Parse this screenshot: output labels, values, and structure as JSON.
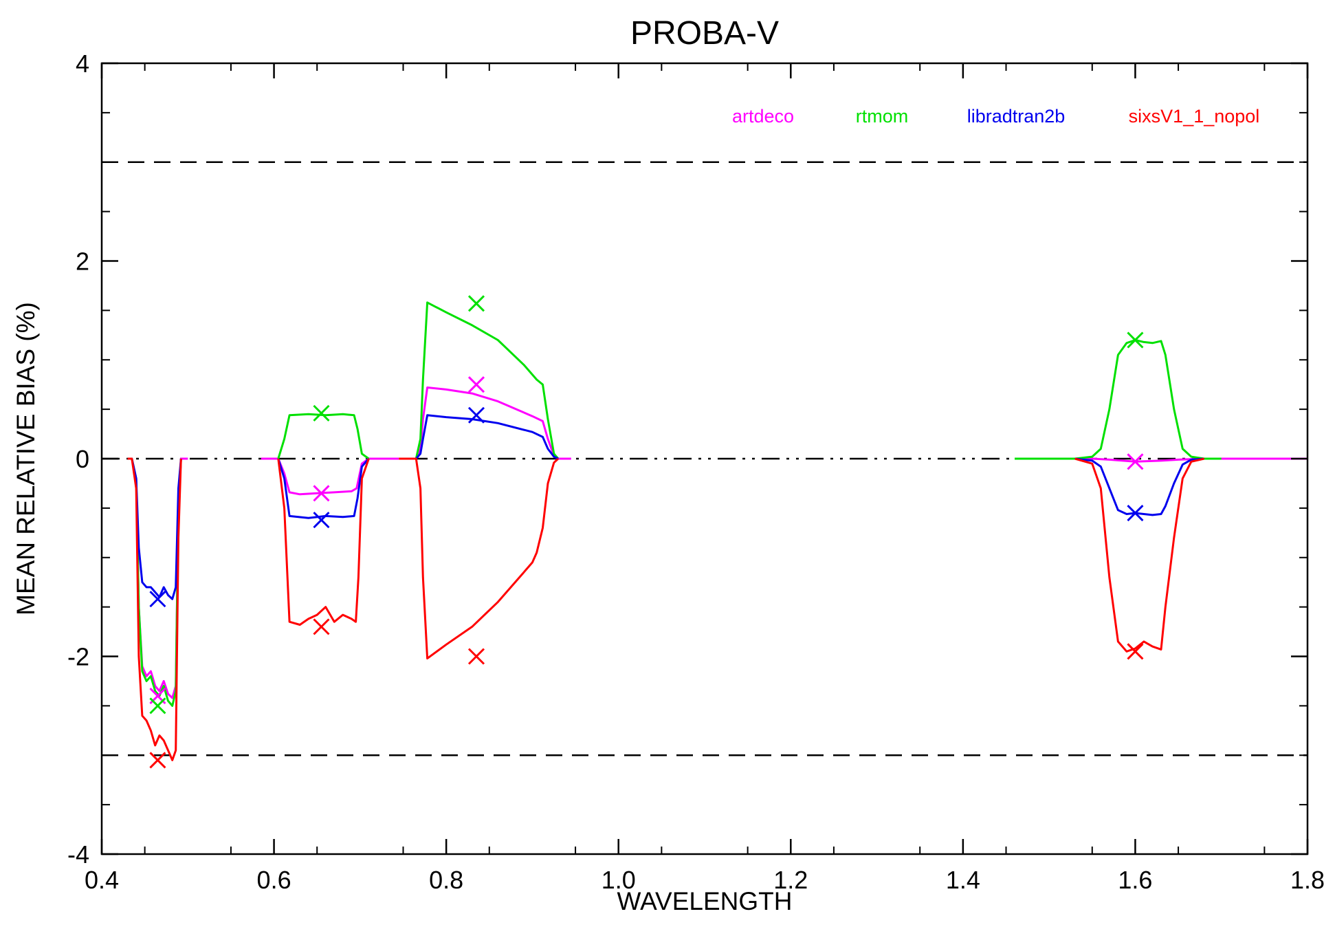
{
  "chart_data": {
    "type": "line",
    "title": "PROBA-V",
    "xlabel": "WAVELENGTH",
    "ylabel": "MEAN RELATIVE BIAS (%)",
    "xlim": [
      0.4,
      1.8
    ],
    "ylim": [
      -4,
      4
    ],
    "x_ticks": [
      0.4,
      0.6,
      0.8,
      1.0,
      1.2,
      1.4,
      1.6,
      1.8
    ],
    "x_tick_labels": [
      "0.4",
      "0.6",
      "0.8",
      "1.0",
      "1.2",
      "1.4",
      "1.6",
      "1.8"
    ],
    "y_ticks": [
      -4,
      -2,
      0,
      2,
      4
    ],
    "y_tick_labels": [
      "-4",
      "-2",
      "0",
      "2",
      "4"
    ],
    "reference_lines": [
      {
        "y": 3,
        "style": "dashed",
        "color": "#000000"
      },
      {
        "y": -3,
        "style": "dashed",
        "color": "#000000"
      },
      {
        "y": 0,
        "style": "dash-dot-dot",
        "color": "#000000"
      }
    ],
    "legend_position": "top-right",
    "series": [
      {
        "name": "artdeco",
        "color": "#ff00ff",
        "segments": [
          [
            [
              0.43,
              0
            ],
            [
              0.435,
              0
            ],
            [
              0.44,
              -0.2
            ],
            [
              0.443,
              -1.5
            ],
            [
              0.447,
              -2.1
            ],
            [
              0.452,
              -2.2
            ],
            [
              0.457,
              -2.15
            ],
            [
              0.462,
              -2.3
            ],
            [
              0.467,
              -2.35
            ],
            [
              0.472,
              -2.25
            ],
            [
              0.477,
              -2.38
            ],
            [
              0.482,
              -2.42
            ],
            [
              0.486,
              -2.3
            ],
            [
              0.489,
              -0.5
            ],
            [
              0.492,
              0
            ],
            [
              0.5,
              0
            ]
          ],
          [
            [
              0.585,
              0
            ],
            [
              0.605,
              0
            ],
            [
              0.612,
              -0.15
            ],
            [
              0.618,
              -0.34
            ],
            [
              0.63,
              -0.36
            ],
            [
              0.65,
              -0.35
            ],
            [
              0.67,
              -0.34
            ],
            [
              0.69,
              -0.33
            ],
            [
              0.696,
              -0.3
            ],
            [
              0.702,
              -0.05
            ],
            [
              0.71,
              0
            ],
            [
              0.745,
              0
            ]
          ],
          [
            [
              0.755,
              0
            ],
            [
              0.765,
              0
            ],
            [
              0.77,
              0.1
            ],
            [
              0.773,
              0.4
            ],
            [
              0.778,
              0.72
            ],
            [
              0.8,
              0.7
            ],
            [
              0.83,
              0.66
            ],
            [
              0.86,
              0.58
            ],
            [
              0.9,
              0.43
            ],
            [
              0.912,
              0.38
            ],
            [
              0.918,
              0.2
            ],
            [
              0.925,
              0.03
            ],
            [
              0.93,
              0
            ],
            [
              0.945,
              0
            ]
          ],
          [
            [
              1.465,
              0
            ],
            [
              1.55,
              0
            ],
            [
              1.57,
              -0.01
            ],
            [
              1.6,
              -0.03
            ],
            [
              1.63,
              -0.02
            ],
            [
              1.65,
              -0.01
            ],
            [
              1.68,
              0
            ],
            [
              1.8,
              0
            ]
          ]
        ],
        "markers": [
          [
            0.465,
            -2.4
          ],
          [
            0.655,
            -0.35
          ],
          [
            0.835,
            0.75
          ],
          [
            1.6,
            -0.03
          ]
        ]
      },
      {
        "name": "rtmom",
        "color": "#00e000",
        "segments": [
          [
            [
              0.43,
              0
            ],
            [
              0.435,
              0
            ],
            [
              0.44,
              -0.2
            ],
            [
              0.443,
              -1.5
            ],
            [
              0.447,
              -2.15
            ],
            [
              0.452,
              -2.25
            ],
            [
              0.457,
              -2.2
            ],
            [
              0.462,
              -2.35
            ],
            [
              0.467,
              -2.4
            ],
            [
              0.472,
              -2.3
            ],
            [
              0.477,
              -2.45
            ],
            [
              0.482,
              -2.5
            ],
            [
              0.486,
              -2.35
            ],
            [
              0.489,
              -0.5
            ],
            [
              0.492,
              0
            ]
          ],
          [
            [
              0.605,
              0
            ],
            [
              0.612,
              0.2
            ],
            [
              0.618,
              0.44
            ],
            [
              0.64,
              0.45
            ],
            [
              0.66,
              0.44
            ],
            [
              0.68,
              0.45
            ],
            [
              0.693,
              0.44
            ],
            [
              0.697,
              0.3
            ],
            [
              0.702,
              0.05
            ],
            [
              0.71,
              0
            ]
          ],
          [
            [
              0.755,
              0
            ],
            [
              0.765,
              0
            ],
            [
              0.77,
              0.2
            ],
            [
              0.773,
              0.8
            ],
            [
              0.778,
              1.58
            ],
            [
              0.8,
              1.48
            ],
            [
              0.83,
              1.35
            ],
            [
              0.86,
              1.2
            ],
            [
              0.89,
              0.95
            ],
            [
              0.905,
              0.8
            ],
            [
              0.912,
              0.75
            ],
            [
              0.918,
              0.4
            ],
            [
              0.925,
              0.05
            ],
            [
              0.93,
              0
            ]
          ],
          [
            [
              1.46,
              0
            ],
            [
              1.53,
              0
            ],
            [
              1.55,
              0.02
            ],
            [
              1.56,
              0.1
            ],
            [
              1.57,
              0.5
            ],
            [
              1.58,
              1.05
            ],
            [
              1.59,
              1.17
            ],
            [
              1.6,
              1.2
            ],
            [
              1.61,
              1.18
            ],
            [
              1.62,
              1.17
            ],
            [
              1.63,
              1.19
            ],
            [
              1.635,
              1.05
            ],
            [
              1.645,
              0.5
            ],
            [
              1.655,
              0.1
            ],
            [
              1.665,
              0.02
            ],
            [
              1.68,
              0
            ],
            [
              1.7,
              0
            ]
          ]
        ],
        "markers": [
          [
            0.465,
            -2.5
          ],
          [
            0.655,
            0.46
          ],
          [
            0.835,
            1.57
          ],
          [
            1.6,
            1.2
          ]
        ]
      },
      {
        "name": "libradtran2b",
        "color": "#0000ee",
        "segments": [
          [
            [
              0.43,
              0
            ],
            [
              0.435,
              0
            ],
            [
              0.44,
              -0.2
            ],
            [
              0.443,
              -0.9
            ],
            [
              0.447,
              -1.25
            ],
            [
              0.452,
              -1.3
            ],
            [
              0.457,
              -1.3
            ],
            [
              0.462,
              -1.35
            ],
            [
              0.467,
              -1.4
            ],
            [
              0.472,
              -1.3
            ],
            [
              0.477,
              -1.38
            ],
            [
              0.482,
              -1.42
            ],
            [
              0.486,
              -1.3
            ],
            [
              0.489,
              -0.3
            ],
            [
              0.492,
              0
            ]
          ],
          [
            [
              0.605,
              0
            ],
            [
              0.612,
              -0.2
            ],
            [
              0.618,
              -0.58
            ],
            [
              0.64,
              -0.6
            ],
            [
              0.66,
              -0.58
            ],
            [
              0.68,
              -0.59
            ],
            [
              0.693,
              -0.58
            ],
            [
              0.697,
              -0.4
            ],
            [
              0.702,
              -0.08
            ],
            [
              0.71,
              0
            ]
          ],
          [
            [
              0.755,
              0
            ],
            [
              0.765,
              0
            ],
            [
              0.77,
              0.05
            ],
            [
              0.773,
              0.2
            ],
            [
              0.778,
              0.44
            ],
            [
              0.8,
              0.42
            ],
            [
              0.83,
              0.4
            ],
            [
              0.86,
              0.36
            ],
            [
              0.9,
              0.27
            ],
            [
              0.912,
              0.22
            ],
            [
              0.918,
              0.1
            ],
            [
              0.925,
              0.02
            ],
            [
              0.93,
              0
            ]
          ],
          [
            [
              1.53,
              0
            ],
            [
              1.55,
              -0.02
            ],
            [
              1.56,
              -0.08
            ],
            [
              1.57,
              -0.3
            ],
            [
              1.58,
              -0.52
            ],
            [
              1.59,
              -0.56
            ],
            [
              1.6,
              -0.55
            ],
            [
              1.61,
              -0.56
            ],
            [
              1.62,
              -0.57
            ],
            [
              1.63,
              -0.56
            ],
            [
              1.635,
              -0.48
            ],
            [
              1.645,
              -0.25
            ],
            [
              1.655,
              -0.06
            ],
            [
              1.665,
              -0.01
            ],
            [
              1.68,
              0
            ]
          ]
        ],
        "markers": [
          [
            0.465,
            -1.42
          ],
          [
            0.655,
            -0.62
          ],
          [
            0.835,
            0.44
          ],
          [
            1.6,
            -0.55
          ]
        ]
      },
      {
        "name": "sixsV1_1_nopol",
        "color": "#ff0000",
        "segments": [
          [
            [
              0.43,
              0
            ],
            [
              0.435,
              0
            ],
            [
              0.44,
              -0.3
            ],
            [
              0.443,
              -2.0
            ],
            [
              0.447,
              -2.6
            ],
            [
              0.452,
              -2.65
            ],
            [
              0.457,
              -2.75
            ],
            [
              0.462,
              -2.9
            ],
            [
              0.467,
              -2.8
            ],
            [
              0.472,
              -2.85
            ],
            [
              0.477,
              -2.95
            ],
            [
              0.482,
              -3.05
            ],
            [
              0.486,
              -2.95
            ],
            [
              0.489,
              -0.8
            ],
            [
              0.492,
              0
            ]
          ],
          [
            [
              0.605,
              0
            ],
            [
              0.612,
              -0.5
            ],
            [
              0.618,
              -1.65
            ],
            [
              0.63,
              -1.68
            ],
            [
              0.64,
              -1.62
            ],
            [
              0.65,
              -1.58
            ],
            [
              0.66,
              -1.5
            ],
            [
              0.67,
              -1.65
            ],
            [
              0.68,
              -1.58
            ],
            [
              0.69,
              -1.62
            ],
            [
              0.695,
              -1.65
            ],
            [
              0.698,
              -1.2
            ],
            [
              0.702,
              -0.2
            ],
            [
              0.71,
              0
            ]
          ],
          [
            [
              0.745,
              0
            ],
            [
              0.765,
              0
            ],
            [
              0.77,
              -0.3
            ],
            [
              0.773,
              -1.2
            ],
            [
              0.778,
              -2.02
            ],
            [
              0.8,
              -1.88
            ],
            [
              0.83,
              -1.7
            ],
            [
              0.86,
              -1.45
            ],
            [
              0.89,
              -1.15
            ],
            [
              0.9,
              -1.05
            ],
            [
              0.905,
              -0.95
            ],
            [
              0.912,
              -0.7
            ],
            [
              0.918,
              -0.25
            ],
            [
              0.925,
              -0.04
            ],
            [
              0.93,
              0
            ]
          ],
          [
            [
              1.53,
              0
            ],
            [
              1.55,
              -0.05
            ],
            [
              1.56,
              -0.3
            ],
            [
              1.57,
              -1.2
            ],
            [
              1.58,
              -1.85
            ],
            [
              1.59,
              -1.95
            ],
            [
              1.6,
              -1.92
            ],
            [
              1.61,
              -1.85
            ],
            [
              1.62,
              -1.9
            ],
            [
              1.63,
              -1.93
            ],
            [
              1.635,
              -1.5
            ],
            [
              1.645,
              -0.8
            ],
            [
              1.655,
              -0.2
            ],
            [
              1.665,
              -0.03
            ],
            [
              1.68,
              0
            ]
          ]
        ],
        "markers": [
          [
            0.465,
            -3.05
          ],
          [
            0.655,
            -1.7
          ],
          [
            0.835,
            -2.0
          ],
          [
            1.6,
            -1.95
          ]
        ]
      }
    ]
  }
}
